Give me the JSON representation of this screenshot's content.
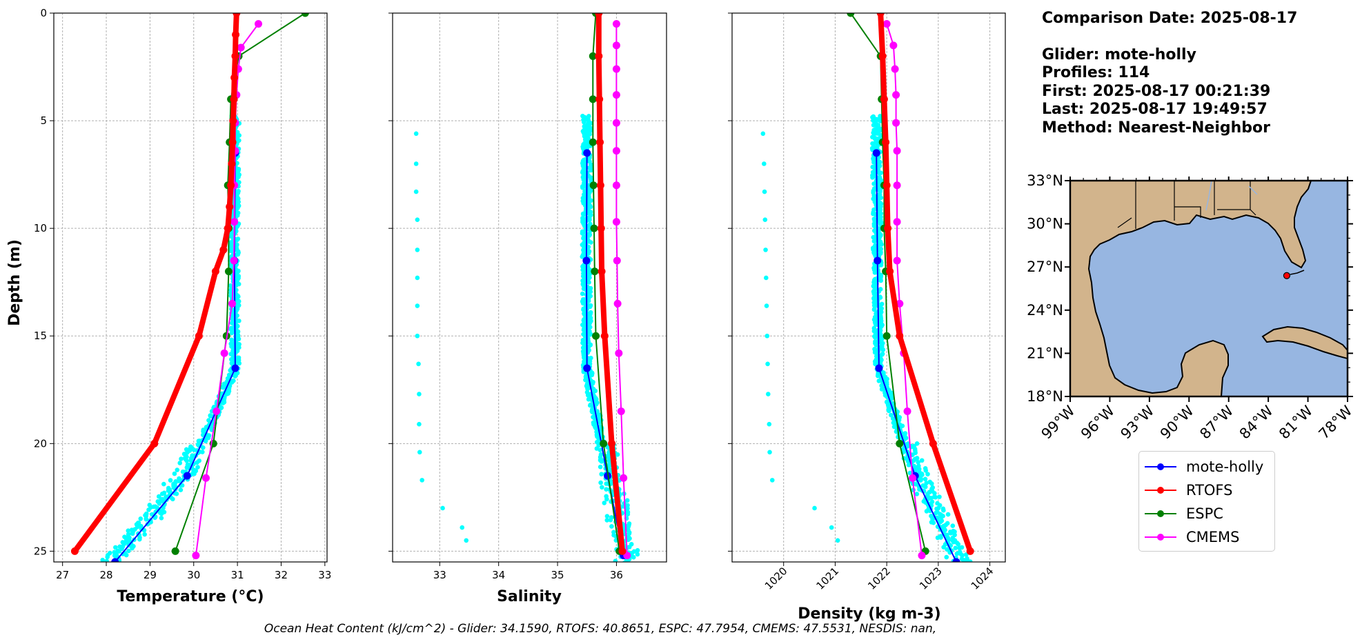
{
  "info": {
    "comparison_date": "Comparison Date: 2025-08-17",
    "glider": "Glider: mote-holly",
    "profiles": "Profiles: 114",
    "first": "First: 2025-08-17 00:21:39",
    "last": "Last: 2025-08-17 19:49:57",
    "method": "Method: Nearest-Neighbor"
  },
  "footer": "Ocean Heat Content (kJ/cm^2) - Glider: 34.1590,  RTOFS: 40.8651,  ESPC: 47.7954,  CMEMS: 47.5531,  NESDIS: nan,",
  "legend": [
    {
      "name": "mote-holly",
      "color": "#0000ff"
    },
    {
      "name": "RTOFS",
      "color": "#ff0000"
    },
    {
      "name": "ESPC",
      "color": "#008000"
    },
    {
      "name": "CMEMS",
      "color": "#ff00ff"
    }
  ],
  "chart_data": [
    {
      "type": "line",
      "xlabel": "Temperature (°C)",
      "ylabel": "Depth (m)",
      "xlim": [
        26.8,
        33.05
      ],
      "ylim": [
        25.5,
        0
      ],
      "xticks": [
        27,
        28,
        29,
        30,
        31,
        32,
        33
      ],
      "yticks": [
        0,
        5,
        10,
        15,
        20,
        25
      ],
      "grid": true,
      "glider_scatter_color": "#00ffff",
      "series": [
        {
          "name": "RTOFS",
          "color": "#ff0000",
          "points": [
            [
              30.98,
              0
            ],
            [
              30.96,
              1
            ],
            [
              30.95,
              2
            ],
            [
              30.93,
              3
            ],
            [
              30.92,
              4
            ],
            [
              30.9,
              5
            ],
            [
              30.89,
              6
            ],
            [
              30.87,
              7
            ],
            [
              30.85,
              8
            ],
            [
              30.82,
              9
            ],
            [
              30.78,
              10
            ],
            [
              30.68,
              11
            ],
            [
              30.5,
              12
            ],
            [
              30.12,
              15
            ],
            [
              29.1,
              20
            ],
            [
              27.28,
              25
            ]
          ]
        },
        {
          "name": "mote-holly",
          "color": "#0000ff",
          "points": [
            [
              30.95,
              6.5
            ],
            [
              30.93,
              11.5
            ],
            [
              30.95,
              16.5
            ],
            [
              29.85,
              21.5
            ],
            [
              28.2,
              25.5
            ]
          ]
        },
        {
          "name": "ESPC",
          "color": "#008000",
          "points": [
            [
              32.55,
              0
            ],
            [
              31.03,
              2
            ],
            [
              30.85,
              4
            ],
            [
              30.82,
              6
            ],
            [
              30.78,
              8
            ],
            [
              30.8,
              10
            ],
            [
              30.8,
              12
            ],
            [
              30.75,
              15
            ],
            [
              30.45,
              20
            ],
            [
              29.58,
              25
            ]
          ]
        },
        {
          "name": "CMEMS",
          "color": "#ff00ff",
          "points": [
            [
              31.48,
              0.5
            ],
            [
              31.08,
              1.6
            ],
            [
              31.02,
              2.6
            ],
            [
              30.98,
              3.8
            ],
            [
              30.95,
              5.1
            ],
            [
              30.95,
              6.4
            ],
            [
              30.93,
              8
            ],
            [
              30.93,
              9.7
            ],
            [
              30.92,
              11.5
            ],
            [
              30.88,
              13.5
            ],
            [
              30.7,
              15.8
            ],
            [
              30.52,
              18.5
            ],
            [
              30.28,
              21.6
            ],
            [
              30.05,
              25.2
            ]
          ]
        }
      ]
    },
    {
      "type": "line",
      "xlabel": "Salinity",
      "ylim": [
        25.5,
        0
      ],
      "xlim": [
        32.2,
        36.85
      ],
      "xticks": [
        33,
        34,
        35,
        36
      ],
      "grid": true,
      "series": [
        {
          "name": "RTOFS",
          "color": "#ff0000",
          "points": [
            [
              35.7,
              0
            ],
            [
              35.7,
              2
            ],
            [
              35.71,
              4
            ],
            [
              35.72,
              6
            ],
            [
              35.73,
              8
            ],
            [
              35.74,
              10
            ],
            [
              35.75,
              12
            ],
            [
              35.8,
              15
            ],
            [
              35.92,
              20
            ],
            [
              36.1,
              25
            ]
          ]
        },
        {
          "name": "mote-holly",
          "color": "#0000ff",
          "points": [
            [
              35.5,
              6.5
            ],
            [
              35.49,
              11.5
            ],
            [
              35.5,
              16.5
            ],
            [
              35.85,
              21.5
            ],
            [
              36.12,
              25.2
            ]
          ]
        },
        {
          "name": "ESPC",
          "color": "#008000",
          "points": [
            [
              35.65,
              0
            ],
            [
              35.6,
              2
            ],
            [
              35.6,
              4
            ],
            [
              35.6,
              6
            ],
            [
              35.61,
              8
            ],
            [
              35.62,
              10
            ],
            [
              35.63,
              12
            ],
            [
              35.65,
              15
            ],
            [
              35.78,
              20
            ],
            [
              36.05,
              25
            ]
          ]
        },
        {
          "name": "CMEMS",
          "color": "#ff00ff",
          "points": [
            [
              36.0,
              0.5
            ],
            [
              36.0,
              1.5
            ],
            [
              36.0,
              2.6
            ],
            [
              36.0,
              3.8
            ],
            [
              36.0,
              5.1
            ],
            [
              36.0,
              6.4
            ],
            [
              36.0,
              8
            ],
            [
              36.0,
              9.7
            ],
            [
              36.01,
              11.5
            ],
            [
              36.02,
              13.5
            ],
            [
              36.04,
              15.8
            ],
            [
              36.08,
              18.5
            ],
            [
              36.12,
              21.6
            ],
            [
              36.18,
              25.2
            ]
          ]
        }
      ],
      "outlier_points": [
        [
          32.6,
          5.6
        ],
        [
          32.6,
          7
        ],
        [
          32.6,
          8.3
        ],
        [
          32.62,
          9.6
        ],
        [
          32.62,
          11
        ],
        [
          32.62,
          12.3
        ],
        [
          32.62,
          13.6
        ],
        [
          32.62,
          15
        ],
        [
          32.64,
          16.3
        ],
        [
          32.65,
          17.7
        ],
        [
          32.65,
          19.1
        ],
        [
          32.66,
          20.4
        ],
        [
          32.7,
          21.7
        ],
        [
          33.05,
          23
        ],
        [
          33.38,
          23.9
        ],
        [
          33.45,
          24.5
        ]
      ]
    },
    {
      "type": "line",
      "xlabel": "Density (kg m-3)",
      "ylim": [
        25.5,
        0
      ],
      "xlim": [
        1019.0,
        1024.3
      ],
      "xticks": [
        1020,
        1021,
        1022,
        1023,
        1024
      ],
      "grid": true,
      "series": [
        {
          "name": "RTOFS",
          "color": "#ff0000",
          "points": [
            [
              1021.88,
              0
            ],
            [
              1021.92,
              2
            ],
            [
              1021.95,
              4
            ],
            [
              1021.98,
              6
            ],
            [
              1022.0,
              8
            ],
            [
              1022.02,
              10
            ],
            [
              1022.06,
              12
            ],
            [
              1022.25,
              15
            ],
            [
              1022.9,
              20
            ],
            [
              1023.62,
              25
            ]
          ]
        },
        {
          "name": "mote-holly",
          "color": "#0000ff",
          "points": [
            [
              1021.8,
              6.5
            ],
            [
              1021.82,
              11.5
            ],
            [
              1021.85,
              16.5
            ],
            [
              1022.55,
              21.5
            ],
            [
              1023.35,
              25.5
            ]
          ]
        },
        {
          "name": "ESPC",
          "color": "#008000",
          "points": [
            [
              1021.3,
              0
            ],
            [
              1021.88,
              2
            ],
            [
              1021.9,
              4
            ],
            [
              1021.92,
              6
            ],
            [
              1021.95,
              8
            ],
            [
              1021.95,
              10
            ],
            [
              1021.98,
              12
            ],
            [
              1022.0,
              15
            ],
            [
              1022.25,
              20
            ],
            [
              1022.75,
              25
            ]
          ]
        },
        {
          "name": "CMEMS",
          "color": "#ff00ff",
          "points": [
            [
              1022.0,
              0.5
            ],
            [
              1022.13,
              1.5
            ],
            [
              1022.16,
              2.6
            ],
            [
              1022.18,
              3.8
            ],
            [
              1022.18,
              5.1
            ],
            [
              1022.2,
              6.4
            ],
            [
              1022.2,
              8
            ],
            [
              1022.2,
              9.7
            ],
            [
              1022.2,
              11.5
            ],
            [
              1022.25,
              13.5
            ],
            [
              1022.33,
              15.8
            ],
            [
              1022.4,
              18.5
            ],
            [
              1022.5,
              21.6
            ],
            [
              1022.68,
              25.2
            ]
          ]
        }
      ],
      "outlier_points": [
        [
          1019.6,
          5.6
        ],
        [
          1019.62,
          7
        ],
        [
          1019.63,
          8.3
        ],
        [
          1019.64,
          9.6
        ],
        [
          1019.65,
          11
        ],
        [
          1019.66,
          12.3
        ],
        [
          1019.67,
          13.6
        ],
        [
          1019.68,
          15
        ],
        [
          1019.69,
          16.3
        ],
        [
          1019.7,
          17.7
        ],
        [
          1019.72,
          19.1
        ],
        [
          1019.73,
          20.4
        ],
        [
          1019.78,
          21.7
        ],
        [
          1020.6,
          23
        ],
        [
          1020.93,
          23.9
        ],
        [
          1021.05,
          24.5
        ]
      ]
    },
    {
      "type": "map",
      "lat_ticks": [
        "33°N",
        "30°N",
        "27°N",
        "24°N",
        "21°N",
        "18°N"
      ],
      "lon_ticks": [
        "99°W",
        "96°W",
        "93°W",
        "90°W",
        "87°W",
        "84°W",
        "81°W",
        "78°W"
      ],
      "land_color": "#d2b48c",
      "ocean_color": "#97b6e1",
      "glider_marker": {
        "lon": -82.6,
        "lat": 26.4,
        "color": "#ff0000"
      }
    }
  ]
}
